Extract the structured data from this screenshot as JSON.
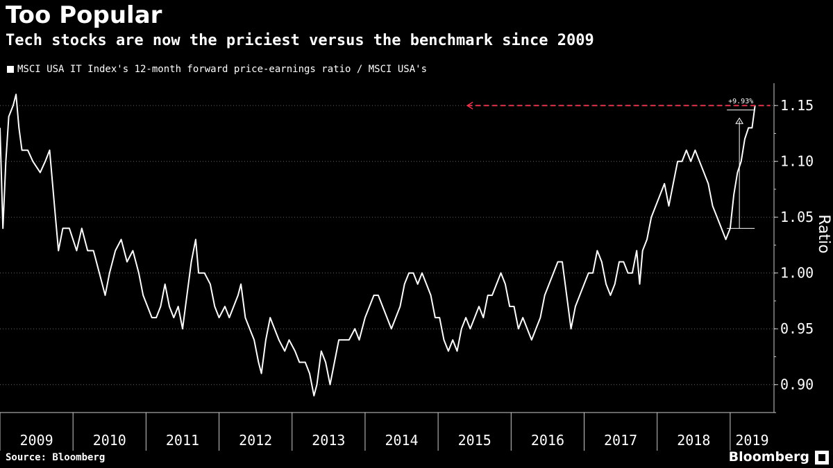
{
  "header": {
    "title": "Too Popular",
    "subtitle": "Tech stocks are now the priciest versus the benchmark since 2009"
  },
  "footer": {
    "source": "Source: Bloomberg",
    "brand": "Bloomberg"
  },
  "colors": {
    "background": "#000000",
    "line": "#ffffff",
    "reference_line": "#e8334a",
    "grid": "#666666"
  },
  "icons": {
    "brand": "bloomberg-logo-icon"
  },
  "chart_data": {
    "type": "line",
    "title": "Too Popular",
    "subtitle": "Tech stocks are now the priciest versus the benchmark since 2009",
    "ylabel": "Ratio",
    "xlabel": "",
    "ylim": [
      0.875,
      1.17
    ],
    "xlim": [
      2009.0,
      2019.6
    ],
    "yticks": [
      0.9,
      0.95,
      1.0,
      1.05,
      1.1,
      1.15
    ],
    "ytick_labels": [
      "0.90",
      "0.95",
      "1.00",
      "1.05",
      "1.10",
      "1.15"
    ],
    "xtick_labels": [
      "2009",
      "2010",
      "2011",
      "2012",
      "2013",
      "2014",
      "2015",
      "2016",
      "2017",
      "2018",
      "2019"
    ],
    "grid": "horizontal dotted",
    "legend_position": "top-left",
    "series": [
      {
        "name": "MSCI USA IT Index's 12-month forward price-earnings ratio / MSCI USA's",
        "points": [
          [
            2009.0,
            1.13
          ],
          [
            2009.04,
            1.04
          ],
          [
            2009.08,
            1.1
          ],
          [
            2009.12,
            1.14
          ],
          [
            2009.18,
            1.15
          ],
          [
            2009.22,
            1.16
          ],
          [
            2009.26,
            1.13
          ],
          [
            2009.3,
            1.11
          ],
          [
            2009.38,
            1.11
          ],
          [
            2009.45,
            1.1
          ],
          [
            2009.55,
            1.09
          ],
          [
            2009.62,
            1.1
          ],
          [
            2009.68,
            1.11
          ],
          [
            2009.72,
            1.08
          ],
          [
            2009.76,
            1.05
          ],
          [
            2009.8,
            1.02
          ],
          [
            2009.86,
            1.04
          ],
          [
            2009.95,
            1.04
          ],
          [
            2010.05,
            1.02
          ],
          [
            2010.12,
            1.04
          ],
          [
            2010.2,
            1.02
          ],
          [
            2010.28,
            1.02
          ],
          [
            2010.36,
            1.0
          ],
          [
            2010.44,
            0.98
          ],
          [
            2010.5,
            1.0
          ],
          [
            2010.58,
            1.02
          ],
          [
            2010.66,
            1.03
          ],
          [
            2010.74,
            1.01
          ],
          [
            2010.82,
            1.02
          ],
          [
            2010.9,
            1.0
          ],
          [
            2010.96,
            0.98
          ],
          [
            2011.02,
            0.97
          ],
          [
            2011.08,
            0.96
          ],
          [
            2011.14,
            0.96
          ],
          [
            2011.2,
            0.97
          ],
          [
            2011.26,
            0.99
          ],
          [
            2011.32,
            0.97
          ],
          [
            2011.38,
            0.96
          ],
          [
            2011.44,
            0.97
          ],
          [
            2011.5,
            0.95
          ],
          [
            2011.56,
            0.98
          ],
          [
            2011.62,
            1.01
          ],
          [
            2011.68,
            1.03
          ],
          [
            2011.72,
            1.0
          ],
          [
            2011.8,
            1.0
          ],
          [
            2011.88,
            0.99
          ],
          [
            2011.94,
            0.97
          ],
          [
            2012.0,
            0.96
          ],
          [
            2012.08,
            0.97
          ],
          [
            2012.14,
            0.96
          ],
          [
            2012.2,
            0.97
          ],
          [
            2012.26,
            0.98
          ],
          [
            2012.3,
            0.99
          ],
          [
            2012.36,
            0.96
          ],
          [
            2012.42,
            0.95
          ],
          [
            2012.48,
            0.94
          ],
          [
            2012.54,
            0.92
          ],
          [
            2012.58,
            0.91
          ],
          [
            2012.64,
            0.94
          ],
          [
            2012.7,
            0.96
          ],
          [
            2012.76,
            0.95
          ],
          [
            2012.82,
            0.94
          ],
          [
            2012.9,
            0.93
          ],
          [
            2012.96,
            0.94
          ],
          [
            2013.04,
            0.93
          ],
          [
            2013.1,
            0.92
          ],
          [
            2013.18,
            0.92
          ],
          [
            2013.24,
            0.91
          ],
          [
            2013.3,
            0.89
          ],
          [
            2013.34,
            0.9
          ],
          [
            2013.4,
            0.93
          ],
          [
            2013.46,
            0.92
          ],
          [
            2013.52,
            0.9
          ],
          [
            2013.58,
            0.92
          ],
          [
            2013.64,
            0.94
          ],
          [
            2013.7,
            0.94
          ],
          [
            2013.78,
            0.94
          ],
          [
            2013.86,
            0.95
          ],
          [
            2013.92,
            0.94
          ],
          [
            2014.0,
            0.96
          ],
          [
            2014.06,
            0.97
          ],
          [
            2014.12,
            0.98
          ],
          [
            2014.18,
            0.98
          ],
          [
            2014.24,
            0.97
          ],
          [
            2014.3,
            0.96
          ],
          [
            2014.36,
            0.95
          ],
          [
            2014.42,
            0.96
          ],
          [
            2014.48,
            0.97
          ],
          [
            2014.54,
            0.99
          ],
          [
            2014.6,
            1.0
          ],
          [
            2014.66,
            1.0
          ],
          [
            2014.72,
            0.99
          ],
          [
            2014.78,
            1.0
          ],
          [
            2014.84,
            0.99
          ],
          [
            2014.9,
            0.98
          ],
          [
            2014.96,
            0.96
          ],
          [
            2015.02,
            0.96
          ],
          [
            2015.08,
            0.94
          ],
          [
            2015.14,
            0.93
          ],
          [
            2015.2,
            0.94
          ],
          [
            2015.26,
            0.93
          ],
          [
            2015.32,
            0.95
          ],
          [
            2015.38,
            0.96
          ],
          [
            2015.44,
            0.95
          ],
          [
            2015.5,
            0.96
          ],
          [
            2015.56,
            0.97
          ],
          [
            2015.62,
            0.96
          ],
          [
            2015.68,
            0.98
          ],
          [
            2015.74,
            0.98
          ],
          [
            2015.8,
            0.99
          ],
          [
            2015.86,
            1.0
          ],
          [
            2015.92,
            0.99
          ],
          [
            2015.98,
            0.97
          ],
          [
            2016.04,
            0.97
          ],
          [
            2016.1,
            0.95
          ],
          [
            2016.16,
            0.96
          ],
          [
            2016.22,
            0.95
          ],
          [
            2016.28,
            0.94
          ],
          [
            2016.34,
            0.95
          ],
          [
            2016.4,
            0.96
          ],
          [
            2016.46,
            0.98
          ],
          [
            2016.52,
            0.99
          ],
          [
            2016.58,
            1.0
          ],
          [
            2016.64,
            1.01
          ],
          [
            2016.7,
            1.01
          ],
          [
            2016.76,
            0.98
          ],
          [
            2016.82,
            0.95
          ],
          [
            2016.88,
            0.97
          ],
          [
            2016.94,
            0.98
          ],
          [
            2017.0,
            0.99
          ],
          [
            2017.06,
            1.0
          ],
          [
            2017.12,
            1.0
          ],
          [
            2017.18,
            1.02
          ],
          [
            2017.24,
            1.01
          ],
          [
            2017.3,
            0.99
          ],
          [
            2017.36,
            0.98
          ],
          [
            2017.42,
            0.99
          ],
          [
            2017.48,
            1.01
          ],
          [
            2017.54,
            1.01
          ],
          [
            2017.6,
            1.0
          ],
          [
            2017.66,
            1.0
          ],
          [
            2017.72,
            1.02
          ],
          [
            2017.76,
            0.99
          ],
          [
            2017.8,
            1.02
          ],
          [
            2017.86,
            1.03
          ],
          [
            2017.92,
            1.05
          ],
          [
            2017.98,
            1.06
          ],
          [
            2018.04,
            1.07
          ],
          [
            2018.1,
            1.08
          ],
          [
            2018.16,
            1.06
          ],
          [
            2018.22,
            1.08
          ],
          [
            2018.28,
            1.1
          ],
          [
            2018.34,
            1.1
          ],
          [
            2018.4,
            1.11
          ],
          [
            2018.46,
            1.1
          ],
          [
            2018.52,
            1.11
          ],
          [
            2018.58,
            1.1
          ],
          [
            2018.64,
            1.09
          ],
          [
            2018.7,
            1.08
          ],
          [
            2018.76,
            1.06
          ],
          [
            2018.82,
            1.05
          ],
          [
            2018.88,
            1.04
          ],
          [
            2018.94,
            1.03
          ],
          [
            2019.0,
            1.04
          ],
          [
            2019.05,
            1.07
          ],
          [
            2019.1,
            1.09
          ],
          [
            2019.15,
            1.1
          ],
          [
            2019.2,
            1.12
          ],
          [
            2019.25,
            1.13
          ],
          [
            2019.3,
            1.13
          ],
          [
            2019.34,
            1.15
          ]
        ]
      }
    ],
    "annotations": [
      {
        "type": "reference_line",
        "y": 1.15,
        "from_x": 2015.4,
        "to_x": 2019.55,
        "style": "dashed",
        "color": "#e8334a"
      },
      {
        "type": "change_marker",
        "from_y": 1.04,
        "to_y": 1.14,
        "text": "+9.93%"
      }
    ]
  }
}
